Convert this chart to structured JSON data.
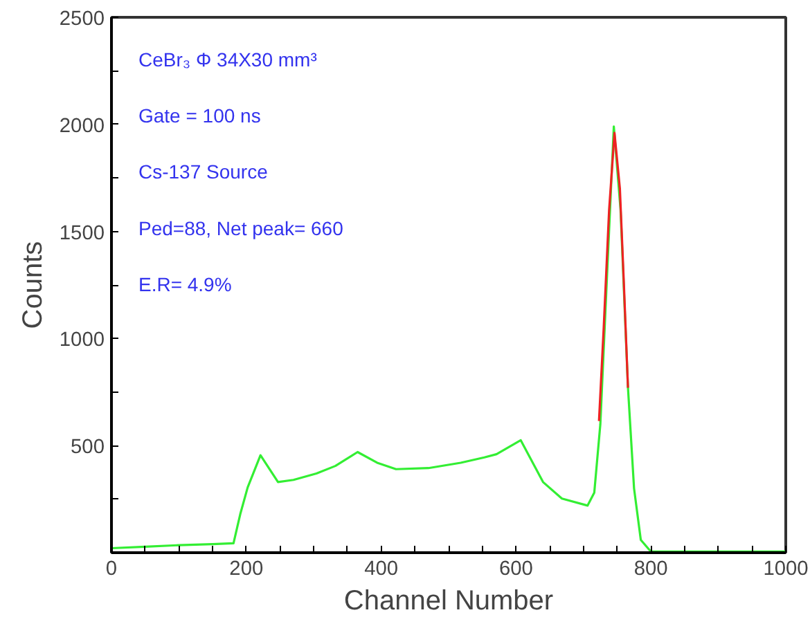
{
  "chart_data": {
    "type": "line",
    "xlabel": "Channel Number",
    "ylabel": "Counts",
    "xlim": [
      0,
      1000
    ],
    "ylim": [
      0,
      2500
    ],
    "xticks": [
      0,
      {
        "value": 50,
        "label": null
      },
      {
        "value": 100,
        "label": null
      },
      {
        "value": 150,
        "label": null
      },
      200,
      {
        "value": 250,
        "label": null
      },
      {
        "value": 300,
        "label": null
      },
      {
        "value": 350,
        "label": null
      },
      400,
      {
        "value": 450,
        "label": null
      },
      {
        "value": 500,
        "label": null
      },
      {
        "value": 550,
        "label": null
      },
      600,
      {
        "value": 650,
        "label": null
      },
      {
        "value": 700,
        "label": null
      },
      {
        "value": 750,
        "label": null
      },
      800,
      {
        "value": 850,
        "label": null
      },
      {
        "value": 900,
        "label": null
      },
      {
        "value": 950,
        "label": null
      },
      1000
    ],
    "yticks": [
      {
        "value": 250,
        "label": null
      },
      500,
      {
        "value": 750,
        "label": null
      },
      1000,
      {
        "value": 1250,
        "label": null
      },
      1500,
      {
        "value": 1750,
        "label": null
      },
      2000,
      {
        "value": 2250,
        "label": null
      },
      2500
    ],
    "grid": false,
    "annotations": [
      "CeBr₃  Φ 34X30 mm³",
      "Gate = 100 ns",
      "Cs-137 Source",
      "Ped=88, Net peak= 660",
      "E.R= 4.9%"
    ],
    "series": [
      {
        "color": "#33ee33",
        "x": [
          0,
          50,
          100,
          150,
          181,
          191,
          202,
          221,
          247,
          270,
          304,
          332,
          365,
          394,
          422,
          470,
          518,
          553,
          571,
          607,
          640,
          668,
          706,
          716,
          725,
          735,
          745,
          755,
          766,
          775,
          785,
          800,
          900,
          1000
        ],
        "values": [
          21,
          28,
          35,
          40,
          44,
          180,
          305,
          455,
          330,
          340,
          370,
          405,
          470,
          420,
          390,
          395,
          420,
          445,
          460,
          525,
          330,
          253,
          220,
          280,
          600,
          1300,
          1990,
          1600,
          770,
          300,
          60,
          5,
          5,
          5
        ]
      },
      {
        "color": "#ee2222",
        "x": [
          723,
          730,
          738,
          746,
          754,
          760,
          766
        ],
        "values": [
          615,
          1050,
          1600,
          1960,
          1700,
          1250,
          770
        ]
      }
    ]
  }
}
